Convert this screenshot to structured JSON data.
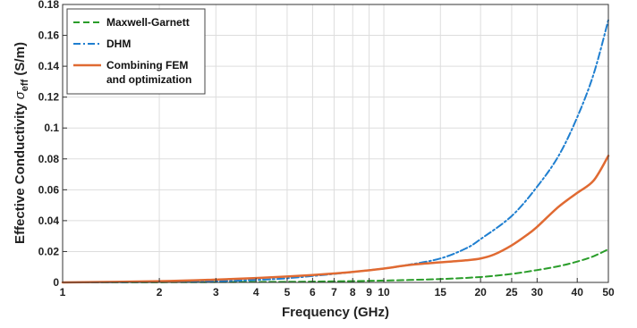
{
  "chart_data": {
    "type": "line",
    "xscale": "log",
    "xlim": [
      1,
      50
    ],
    "ylim": [
      0,
      0.18
    ],
    "grid": true,
    "legend_position": "top-left",
    "xlabel": "Frequency (GHz)",
    "ylabel_main": "Effective Conductivity ",
    "ylabel_symbol": "σ",
    "ylabel_subscript": "eff",
    "ylabel_unit": " (S/m)",
    "x_ticks": [
      1,
      2,
      3,
      4,
      5,
      6,
      7,
      8,
      9,
      10,
      15,
      20,
      25,
      30,
      40,
      50
    ],
    "x_tick_labels": [
      "1",
      "2",
      "3",
      "4",
      "5",
      "6",
      "7",
      "8",
      "9",
      "10",
      "15",
      "20",
      "25",
      "30",
      "40",
      "50"
    ],
    "y_ticks": [
      0,
      0.02,
      0.04,
      0.06,
      0.08,
      0.1,
      0.12,
      0.14,
      0.16,
      0.18
    ],
    "y_tick_labels": [
      "0",
      "0.02",
      "0.04",
      "0.06",
      "0.08",
      "0.1",
      "0.12",
      "0.14",
      "0.16",
      "0.18"
    ],
    "series": [
      {
        "name": "Maxwell-Garnett",
        "color": "#2a9d2a",
        "style": "dashed",
        "x": [
          1,
          2,
          3,
          5,
          7,
          10,
          15,
          20,
          25,
          30,
          35,
          40,
          45,
          50
        ],
        "y": [
          0,
          0.0001,
          0.0002,
          0.0004,
          0.0007,
          0.0012,
          0.0022,
          0.0035,
          0.0055,
          0.008,
          0.0105,
          0.0135,
          0.017,
          0.0215
        ]
      },
      {
        "name": "DHM",
        "color": "#1f7fd0",
        "style": "dashdot",
        "x": [
          1,
          2,
          3,
          4,
          5,
          7,
          10,
          12,
          15,
          18,
          20,
          25,
          30,
          35,
          40,
          45,
          50
        ],
        "y": [
          0,
          0.0003,
          0.0008,
          0.0016,
          0.0027,
          0.0055,
          0.009,
          0.0115,
          0.0155,
          0.022,
          0.028,
          0.043,
          0.062,
          0.082,
          0.107,
          0.135,
          0.17
        ]
      },
      {
        "name": "Combining FEM",
        "name_line2": "and optimization",
        "color": "#e06a32",
        "style": "solid",
        "x": [
          1,
          2,
          3,
          4,
          5,
          6,
          7,
          8,
          10,
          12,
          15,
          18,
          20,
          22,
          25,
          28,
          30,
          35,
          40,
          45,
          50
        ],
        "y": [
          0,
          0.0008,
          0.0018,
          0.0028,
          0.0038,
          0.0048,
          0.0058,
          0.0068,
          0.009,
          0.0113,
          0.013,
          0.0143,
          0.0155,
          0.018,
          0.024,
          0.031,
          0.036,
          0.049,
          0.058,
          0.066,
          0.082
        ]
      }
    ]
  }
}
